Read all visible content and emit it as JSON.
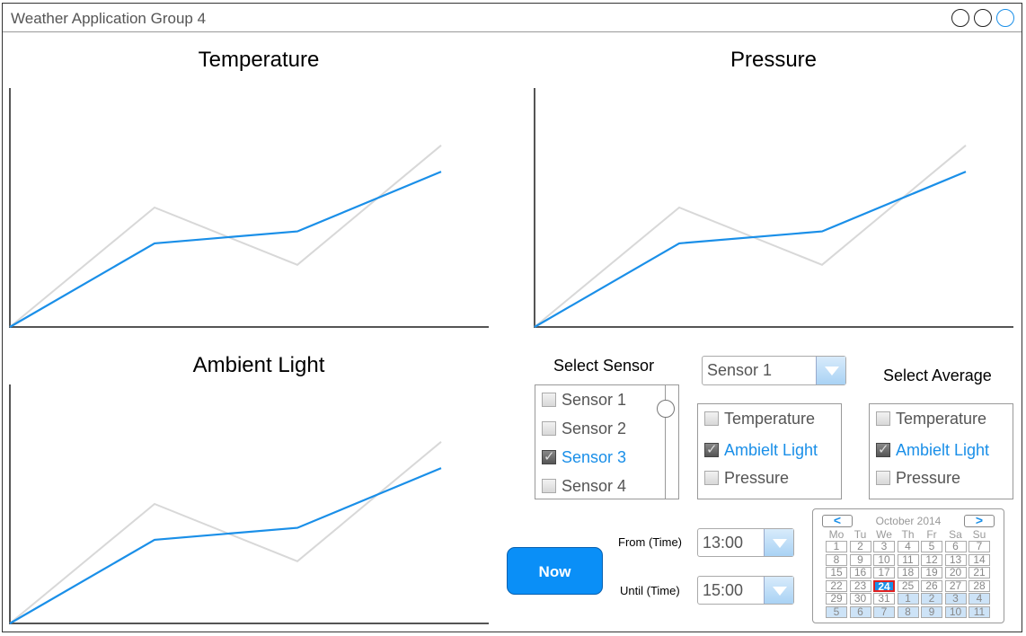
{
  "window": {
    "title": "Weather Application Group 4"
  },
  "charts": [
    {
      "title": "Temperature"
    },
    {
      "title": "Pressure"
    },
    {
      "title": "Ambient Light"
    }
  ],
  "chart_data": [
    {
      "type": "line",
      "title": "Temperature",
      "x": [
        0,
        1,
        2,
        3
      ],
      "series": [
        {
          "color": "#1a8fe8",
          "values": [
            0,
            35,
            40,
            65
          ]
        },
        {
          "color": "#d8d8d8",
          "values": [
            0,
            50,
            26,
            76
          ]
        }
      ]
    },
    {
      "type": "line",
      "title": "Pressure",
      "x": [
        0,
        1,
        2,
        3
      ],
      "series": [
        {
          "color": "#1a8fe8",
          "values": [
            0,
            35,
            40,
            65
          ]
        },
        {
          "color": "#d8d8d8",
          "values": [
            0,
            50,
            26,
            76
          ]
        }
      ]
    },
    {
      "type": "line",
      "title": "Ambient Light",
      "x": [
        0,
        1,
        2,
        3
      ],
      "series": [
        {
          "color": "#1a8fe8",
          "values": [
            0,
            35,
            40,
            65
          ]
        },
        {
          "color": "#d8d8d8",
          "values": [
            0,
            50,
            26,
            76
          ]
        }
      ]
    }
  ],
  "select_sensor": {
    "label": "Select Sensor",
    "items": [
      {
        "label": "Sensor 1",
        "checked": false
      },
      {
        "label": "Sensor 2",
        "checked": false
      },
      {
        "label": "Sensor 3",
        "checked": true
      },
      {
        "label": "Sensor 4",
        "checked": false
      }
    ]
  },
  "sensor_dropdown": {
    "value": "Sensor 1"
  },
  "measures": {
    "items": [
      {
        "label": "Temperature",
        "checked": false
      },
      {
        "label": "Ambielt Light",
        "checked": true
      },
      {
        "label": "Pressure",
        "checked": false
      }
    ]
  },
  "select_average": {
    "label": "Select Average",
    "items": [
      {
        "label": "Temperature",
        "checked": false
      },
      {
        "label": "Ambielt Light",
        "checked": true
      },
      {
        "label": "Pressure",
        "checked": false
      }
    ]
  },
  "now_button": {
    "label": "Now"
  },
  "from_time": {
    "label": "From (Time)",
    "value": "13:00"
  },
  "until_time": {
    "label": "Until (Time)",
    "value": "15:00"
  },
  "calendar": {
    "prev": "<",
    "next": ">",
    "month": "October 2014",
    "weekdays": [
      "Mo",
      "Tu",
      "We",
      "Th",
      "Fr",
      "Sa",
      "Su"
    ],
    "weeks": [
      [
        "1",
        "2",
        "3",
        "4",
        "5",
        "6",
        "7"
      ],
      [
        "8",
        "9",
        "10",
        "11",
        "12",
        "13",
        "14"
      ],
      [
        "15",
        "16",
        "17",
        "18",
        "19",
        "20",
        "21"
      ],
      [
        "22",
        "23",
        "24",
        "25",
        "26",
        "27",
        "28"
      ],
      [
        "29",
        "30",
        "31",
        "1",
        "2",
        "3",
        "4"
      ],
      [
        "5",
        "6",
        "7",
        "8",
        "9",
        "10",
        "11"
      ]
    ],
    "selected": "24"
  }
}
